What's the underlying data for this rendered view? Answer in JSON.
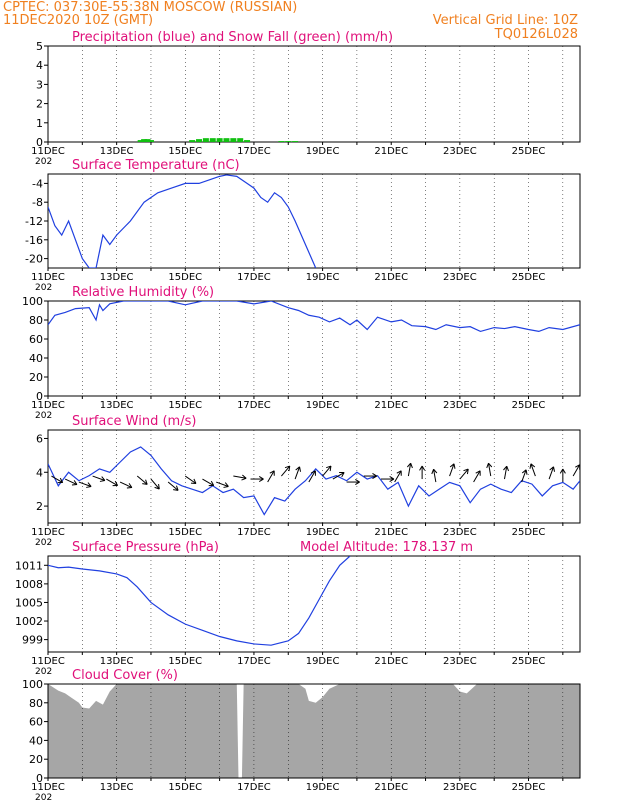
{
  "header": {
    "line1": "CPTEC:   037:30E-55:38N   MOSCOW (RUSSIAN)",
    "line2": "11DEC2020 10Z (GMT)",
    "grid_note": "Vertical Grid Line: 10Z",
    "code": "TQ0126L028"
  },
  "colors": {
    "header": "#f08020",
    "title": "#e0107a",
    "line": "#2040e0",
    "snow": "#10c010",
    "cloud": "#a6a6a6",
    "wind_arrow": "#000000"
  },
  "x_tick_labels": [
    "11DEC",
    "13DEC",
    "15DEC",
    "17DEC",
    "19DEC",
    "21DEC",
    "23DEC",
    "25DEC"
  ],
  "year_fragment": "202",
  "chart_data": [
    {
      "id": "precip",
      "type": "bar",
      "title": "Precipitation (blue) and Snow Fall (green) (mm/h)",
      "ylim": [
        0,
        5
      ],
      "yticks": [
        "0",
        "1",
        "2",
        "3",
        "4",
        "5"
      ],
      "xlim_days": [
        0,
        15.5
      ],
      "series": [
        {
          "name": "Precipitation (blue)",
          "color": "#2040e0",
          "x": [],
          "values": []
        },
        {
          "name": "Snow Fall (green)",
          "color": "#10c010",
          "x": [
            2.7,
            2.8,
            2.9,
            3.0,
            4.2,
            4.4,
            4.6,
            4.8,
            5.0,
            5.2,
            5.4,
            5.6,
            5.8,
            6.8,
            7.0,
            7.2
          ],
          "values": [
            0.1,
            0.15,
            0.15,
            0.1,
            0.1,
            0.15,
            0.2,
            0.2,
            0.2,
            0.2,
            0.2,
            0.2,
            0.1,
            0.05,
            0.05,
            0.05
          ]
        }
      ]
    },
    {
      "id": "temp",
      "type": "line",
      "title": "Surface Temperature (nC)",
      "ylim": [
        -22,
        -2
      ],
      "yticks": [
        "-20",
        "-16",
        "-12",
        "-8",
        "-4"
      ],
      "ytick_values": [
        -20,
        -16,
        -12,
        -8,
        -4
      ],
      "xlim_days": [
        0,
        15.5
      ],
      "series": [
        {
          "x": [
            0,
            0.2,
            0.4,
            0.6,
            0.8,
            1.0,
            1.2,
            1.4,
            1.6,
            1.8,
            2.0,
            2.4,
            2.8,
            3.2,
            3.6,
            4.0,
            4.4,
            4.8,
            5.0,
            5.2,
            5.5,
            5.8,
            6.0,
            6.2,
            6.4,
            6.6,
            6.8,
            7.0,
            7.2,
            7.5,
            7.8
          ],
          "values": [
            -9,
            -13,
            -15,
            -12,
            -16,
            -20,
            -22,
            -22,
            -15,
            -17,
            -15,
            -12,
            -8,
            -6,
            -5,
            -4,
            -4,
            -3,
            -2.5,
            -2.2,
            -2.5,
            -4,
            -5,
            -7,
            -8,
            -6,
            -7,
            -9,
            -12,
            -17,
            -22
          ]
        }
      ]
    },
    {
      "id": "rh",
      "type": "line",
      "title": "Relative Humidity (%)",
      "ylim": [
        0,
        100
      ],
      "yticks": [
        "0",
        "20",
        "40",
        "60",
        "80",
        "100"
      ],
      "ytick_values": [
        0,
        20,
        40,
        60,
        80,
        100
      ],
      "xlim_days": [
        0,
        15.5
      ],
      "series": [
        {
          "x": [
            0,
            0.2,
            0.5,
            0.8,
            1.2,
            1.4,
            1.5,
            1.6,
            1.8,
            2.2,
            2.5,
            3.0,
            3.5,
            4.0,
            4.5,
            5.0,
            5.5,
            6.0,
            6.5,
            7.0,
            7.3,
            7.6,
            7.9,
            8.2,
            8.5,
            8.8,
            9.0,
            9.3,
            9.6,
            10.0,
            10.3,
            10.6,
            11.0,
            11.3,
            11.6,
            12.0,
            12.3,
            12.6,
            13.0,
            13.3,
            13.6,
            14.0,
            14.3,
            14.6,
            15.0,
            15.5
          ],
          "values": [
            75,
            85,
            88,
            92,
            93,
            80,
            96,
            90,
            97,
            100,
            100,
            100,
            100,
            96,
            100,
            100,
            100,
            97,
            100,
            93,
            90,
            85,
            83,
            78,
            82,
            75,
            80,
            70,
            83,
            78,
            80,
            74,
            73,
            70,
            75,
            72,
            73,
            68,
            72,
            71,
            73,
            70,
            68,
            72,
            70,
            75
          ]
        }
      ]
    },
    {
      "id": "wind",
      "type": "line",
      "title": "Surface Wind (m/s)",
      "ylim": [
        1,
        6.5
      ],
      "yticks": [
        "2",
        "4",
        "6"
      ],
      "ytick_values": [
        2,
        4,
        6
      ],
      "xlim_days": [
        0,
        15.5
      ],
      "series": [
        {
          "x": [
            0,
            0.3,
            0.6,
            0.9,
            1.2,
            1.5,
            1.8,
            2.1,
            2.4,
            2.7,
            3.0,
            3.3,
            3.6,
            3.9,
            4.2,
            4.5,
            4.8,
            5.1,
            5.4,
            5.7,
            6.0,
            6.3,
            6.6,
            6.9,
            7.2,
            7.5,
            7.8,
            8.1,
            8.4,
            8.7,
            9.0,
            9.3,
            9.6,
            9.9,
            10.2,
            10.5,
            10.8,
            11.1,
            11.4,
            11.7,
            12.0,
            12.3,
            12.6,
            12.9,
            13.2,
            13.5,
            13.8,
            14.1,
            14.4,
            14.7,
            15.0,
            15.3,
            15.5
          ],
          "values": [
            4.5,
            3.2,
            4.0,
            3.5,
            3.8,
            4.2,
            4.0,
            4.6,
            5.2,
            5.5,
            5.0,
            4.2,
            3.5,
            3.2,
            3.0,
            2.8,
            3.2,
            2.8,
            3.0,
            2.5,
            2.6,
            1.5,
            2.5,
            2.3,
            3.0,
            3.5,
            4.2,
            3.6,
            3.8,
            3.5,
            4.0,
            3.6,
            3.8,
            3.0,
            3.4,
            2.0,
            3.2,
            2.6,
            3.0,
            3.4,
            3.2,
            2.2,
            3.0,
            3.3,
            3.0,
            2.8,
            3.5,
            3.3,
            2.6,
            3.2,
            3.4,
            3.0,
            3.5
          ]
        }
      ],
      "wind_barbs": {
        "x": [
          0.1,
          0.5,
          0.9,
          1.3,
          1.7,
          2.1,
          2.6,
          3.0,
          3.5,
          4.0,
          4.5,
          4.9,
          5.4,
          5.9,
          6.4,
          6.8,
          7.2,
          7.6,
          8.0,
          8.3,
          8.7,
          9.2,
          9.7,
          10.1,
          10.5,
          10.9,
          11.3,
          11.7,
          12.0,
          12.4,
          12.9,
          13.3,
          13.8,
          14.2,
          14.6,
          15.0,
          15.3
        ],
        "dir_deg": [
          120,
          115,
          110,
          110,
          120,
          115,
          130,
          140,
          130,
          125,
          120,
          110,
          100,
          90,
          30,
          40,
          20,
          30,
          40,
          60,
          90,
          90,
          90,
          30,
          10,
          0,
          350,
          20,
          40,
          30,
          350,
          10,
          20,
          340,
          20,
          0,
          30
        ]
      }
    },
    {
      "id": "pressure",
      "type": "line",
      "title": "Surface Pressure (hPa)",
      "model_altitude": "Model Altitude: 178.137 m",
      "ylim": [
        997,
        1012.5
      ],
      "yticks": [
        "999",
        "1002",
        "1005",
        "1008",
        "1011"
      ],
      "ytick_values": [
        999,
        1002,
        1005,
        1008,
        1011
      ],
      "xlim_days": [
        0,
        15.5
      ],
      "series": [
        {
          "x": [
            0,
            0.3,
            0.6,
            1.0,
            1.5,
            2.0,
            2.3,
            2.6,
            3.0,
            3.5,
            4.0,
            4.5,
            5.0,
            5.5,
            6.0,
            6.5,
            7.0,
            7.3,
            7.6,
            7.9,
            8.2,
            8.5,
            8.8
          ],
          "values": [
            1011,
            1010.6,
            1010.7,
            1010.4,
            1010.1,
            1009.6,
            1009.0,
            1007.5,
            1005.0,
            1003.0,
            1001.5,
            1000.5,
            999.5,
            998.8,
            998.3,
            998.1,
            998.8,
            1000.0,
            1002.5,
            1005.5,
            1008.5,
            1011.0,
            1012.5
          ]
        }
      ]
    },
    {
      "id": "cloud",
      "type": "area",
      "title": "Cloud Cover (%)",
      "ylim": [
        0,
        100
      ],
      "yticks": [
        "0",
        "20",
        "40",
        "60",
        "80",
        "100"
      ],
      "ytick_values": [
        0,
        20,
        40,
        60,
        80,
        100
      ],
      "xlim_days": [
        0,
        15.5
      ],
      "series": [
        {
          "x": [
            0,
            0.3,
            0.5,
            0.7,
            0.9,
            1.0,
            1.2,
            1.4,
            1.6,
            1.8,
            2.0,
            2.5,
            3.0,
            4.0,
            5.0,
            5.5,
            5.55,
            5.65,
            5.7,
            6.0,
            7.0,
            7.3,
            7.5,
            7.6,
            7.8,
            8.0,
            8.2,
            8.5,
            9.0,
            10.0,
            11.0,
            11.8,
            12.0,
            12.2,
            12.5,
            13.0,
            14.0,
            15.0,
            15.5
          ],
          "values": [
            100,
            93,
            90,
            85,
            80,
            75,
            74,
            82,
            78,
            92,
            100,
            100,
            100,
            100,
            100,
            100,
            0,
            0,
            100,
            100,
            100,
            100,
            95,
            82,
            80,
            86,
            95,
            100,
            100,
            100,
            100,
            100,
            92,
            90,
            100,
            100,
            100,
            100,
            100
          ]
        }
      ]
    }
  ]
}
